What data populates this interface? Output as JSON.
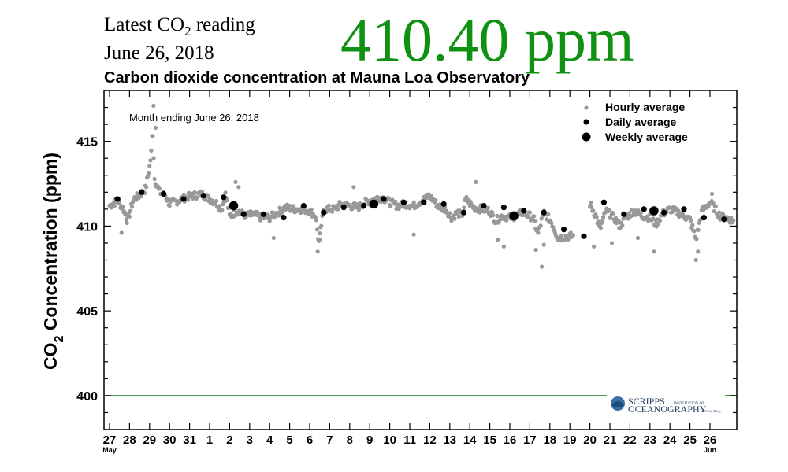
{
  "header": {
    "latest_prefix": "Latest CO",
    "latest_sub": "2",
    "latest_suffix": " reading",
    "date": "June 26, 2018",
    "reading": "410.40 ppm"
  },
  "colors": {
    "reading": "#119111",
    "hourly": "#999999",
    "daily": "#000000",
    "weekly": "#000000",
    "reference_line": "#2e8b2e"
  },
  "logo": {
    "line1": "SCRIPPS",
    "line1_small": "INSTITUTION OF",
    "line2": "OCEANOGRAPHY",
    "line2_small": "UC San Diego"
  },
  "chart_data": {
    "type": "scatter",
    "title": "Carbon dioxide concentration at Mauna Loa Observatory",
    "note": "Month ending June 26, 2018",
    "ylabel_prefix": "CO",
    "ylabel_sub": "2",
    "ylabel_suffix": " Concentration (ppm)",
    "ylim": [
      398,
      418
    ],
    "yticks": [
      400,
      405,
      410,
      415
    ],
    "xlim": [
      0,
      31.3
    ],
    "xticks": [
      {
        "x": 0,
        "label": "27",
        "month": "May"
      },
      {
        "x": 1,
        "label": "28"
      },
      {
        "x": 2,
        "label": "29"
      },
      {
        "x": 3,
        "label": "30"
      },
      {
        "x": 4,
        "label": "31"
      },
      {
        "x": 5,
        "label": "1"
      },
      {
        "x": 6,
        "label": "2"
      },
      {
        "x": 7,
        "label": "3"
      },
      {
        "x": 8,
        "label": "4"
      },
      {
        "x": 9,
        "label": "5"
      },
      {
        "x": 10,
        "label": "6"
      },
      {
        "x": 11,
        "label": "7"
      },
      {
        "x": 12,
        "label": "8"
      },
      {
        "x": 13,
        "label": "9"
      },
      {
        "x": 14,
        "label": "10"
      },
      {
        "x": 15,
        "label": "11"
      },
      {
        "x": 16,
        "label": "12"
      },
      {
        "x": 17,
        "label": "13"
      },
      {
        "x": 18,
        "label": "14"
      },
      {
        "x": 19,
        "label": "15"
      },
      {
        "x": 20,
        "label": "16"
      },
      {
        "x": 21,
        "label": "17"
      },
      {
        "x": 22,
        "label": "18"
      },
      {
        "x": 23,
        "label": "19"
      },
      {
        "x": 24,
        "label": "20"
      },
      {
        "x": 25,
        "label": "21"
      },
      {
        "x": 26,
        "label": "22"
      },
      {
        "x": 27,
        "label": "23"
      },
      {
        "x": 28,
        "label": "24"
      },
      {
        "x": 29,
        "label": "25"
      },
      {
        "x": 30,
        "label": "26",
        "month": "Jun"
      }
    ],
    "reference_line": 400,
    "legend": [
      {
        "name": "Hourly average",
        "marker": "small"
      },
      {
        "name": "Daily average",
        "marker": "medium"
      },
      {
        "name": "Weekly average",
        "marker": "large"
      }
    ],
    "hourly_profile": [
      [
        0.0,
        411.2
      ],
      [
        0.4,
        411.5
      ],
      [
        0.7,
        411.0
      ],
      [
        0.9,
        410.3
      ],
      [
        1.2,
        411.6
      ],
      [
        1.5,
        411.8
      ],
      [
        1.8,
        412.2
      ],
      [
        2.0,
        413.5
      ],
      [
        2.1,
        414.5
      ],
      [
        2.15,
        416.0
      ],
      [
        2.25,
        412.8
      ],
      [
        2.5,
        412.0
      ],
      [
        2.8,
        411.8
      ],
      [
        3.0,
        411.3
      ],
      [
        3.4,
        411.5
      ],
      [
        3.8,
        411.7
      ],
      [
        4.2,
        411.8
      ],
      [
        4.6,
        411.9
      ],
      [
        5.0,
        411.6
      ],
      [
        5.3,
        411.4
      ],
      [
        5.6,
        411.0
      ],
      [
        5.8,
        411.9
      ],
      [
        6.0,
        410.6
      ],
      [
        6.4,
        410.9
      ],
      [
        6.8,
        410.6
      ],
      [
        7.2,
        410.7
      ],
      [
        7.6,
        410.5
      ],
      [
        8.0,
        410.5
      ],
      [
        8.4,
        410.8
      ],
      [
        8.8,
        411.1
      ],
      [
        9.2,
        411.0
      ],
      [
        9.6,
        411.0
      ],
      [
        10.0,
        410.9
      ],
      [
        10.3,
        410.6
      ],
      [
        10.45,
        409.0
      ],
      [
        10.7,
        411.0
      ],
      [
        11.2,
        411.0
      ],
      [
        11.6,
        411.3
      ],
      [
        12.0,
        411.2
      ],
      [
        12.4,
        411.1
      ],
      [
        12.8,
        411.4
      ],
      [
        13.2,
        411.6
      ],
      [
        13.6,
        411.7
      ],
      [
        14.0,
        411.4
      ],
      [
        14.4,
        411.2
      ],
      [
        14.8,
        411.3
      ],
      [
        15.2,
        411.2
      ],
      [
        15.6,
        411.5
      ],
      [
        16.0,
        411.8
      ],
      [
        16.4,
        411.2
      ],
      [
        16.8,
        411.0
      ],
      [
        17.1,
        410.5
      ],
      [
        17.4,
        410.8
      ],
      [
        17.6,
        410.6
      ],
      [
        17.8,
        411.6
      ],
      [
        18.2,
        411.1
      ],
      [
        18.6,
        411.0
      ],
      [
        19.0,
        410.9
      ],
      [
        19.3,
        410.3
      ],
      [
        19.6,
        410.6
      ],
      [
        20.0,
        410.5
      ],
      [
        20.3,
        410.6
      ],
      [
        20.6,
        410.8
      ],
      [
        21.0,
        410.6
      ],
      [
        21.2,
        410.4
      ],
      [
        21.4,
        409.5
      ],
      [
        21.7,
        410.8
      ],
      [
        22.1,
        410.2
      ],
      [
        22.4,
        409.3
      ],
      [
        22.8,
        409.4
      ],
      [
        23.2,
        409.4
      ],
      [
        24.0,
        411.3
      ],
      [
        24.3,
        410.6
      ],
      [
        24.5,
        409.8
      ],
      [
        24.8,
        410.9
      ],
      [
        25.2,
        410.5
      ],
      [
        25.5,
        410.0
      ],
      [
        25.8,
        410.5
      ],
      [
        26.2,
        410.9
      ],
      [
        26.6,
        410.6
      ],
      [
        27.0,
        410.5
      ],
      [
        27.3,
        410.1
      ],
      [
        27.6,
        410.7
      ],
      [
        28.0,
        411.0
      ],
      [
        28.4,
        410.8
      ],
      [
        28.7,
        410.6
      ],
      [
        29.0,
        410.4
      ],
      [
        29.3,
        409.2
      ],
      [
        29.6,
        410.9
      ],
      [
        30.0,
        411.4
      ],
      [
        30.2,
        411.1
      ],
      [
        30.5,
        410.6
      ],
      [
        30.8,
        410.5
      ],
      [
        31.2,
        410.3
      ]
    ],
    "hourly_spikes": [
      [
        0.6,
        409.6
      ],
      [
        1.9,
        412.9
      ],
      [
        2.2,
        417.1
      ],
      [
        2.3,
        415.8
      ],
      [
        6.3,
        412.6
      ],
      [
        6.45,
        412.3
      ],
      [
        8.2,
        409.3
      ],
      [
        10.4,
        408.5
      ],
      [
        10.5,
        409.2
      ],
      [
        12.2,
        412.3
      ],
      [
        15.2,
        409.5
      ],
      [
        18.3,
        412.6
      ],
      [
        19.4,
        409.2
      ],
      [
        19.7,
        408.8
      ],
      [
        21.3,
        408.6
      ],
      [
        21.6,
        407.6
      ],
      [
        21.7,
        408.9
      ],
      [
        24.2,
        408.8
      ],
      [
        25.1,
        409.0
      ],
      [
        26.4,
        409.3
      ],
      [
        27.2,
        408.5
      ],
      [
        29.3,
        408.0
      ],
      [
        29.4,
        408.5
      ],
      [
        30.1,
        411.9
      ]
    ],
    "daily": [
      [
        0.4,
        411.6
      ],
      [
        1.6,
        412.0
      ],
      [
        2.7,
        411.9
      ],
      [
        3.7,
        411.6
      ],
      [
        4.7,
        411.8
      ],
      [
        5.7,
        411.7
      ],
      [
        6.7,
        410.7
      ],
      [
        7.7,
        410.7
      ],
      [
        8.7,
        410.5
      ],
      [
        9.7,
        411.2
      ],
      [
        10.7,
        410.8
      ],
      [
        11.7,
        411.1
      ],
      [
        12.7,
        411.2
      ],
      [
        13.7,
        411.6
      ],
      [
        14.7,
        411.4
      ],
      [
        15.7,
        411.4
      ],
      [
        16.7,
        411.3
      ],
      [
        17.7,
        410.8
      ],
      [
        18.7,
        411.2
      ],
      [
        19.7,
        411.1
      ],
      [
        20.7,
        410.9
      ],
      [
        21.7,
        410.8
      ],
      [
        22.7,
        409.8
      ],
      [
        23.7,
        409.4
      ],
      [
        24.7,
        411.4
      ],
      [
        25.7,
        410.7
      ],
      [
        26.7,
        411.0
      ],
      [
        27.7,
        410.8
      ],
      [
        28.7,
        411.0
      ],
      [
        29.7,
        410.5
      ],
      [
        30.7,
        410.4
      ]
    ],
    "weekly": [
      [
        6.2,
        411.2
      ],
      [
        13.2,
        411.3
      ],
      [
        20.2,
        410.6
      ],
      [
        27.2,
        410.9
      ]
    ]
  }
}
